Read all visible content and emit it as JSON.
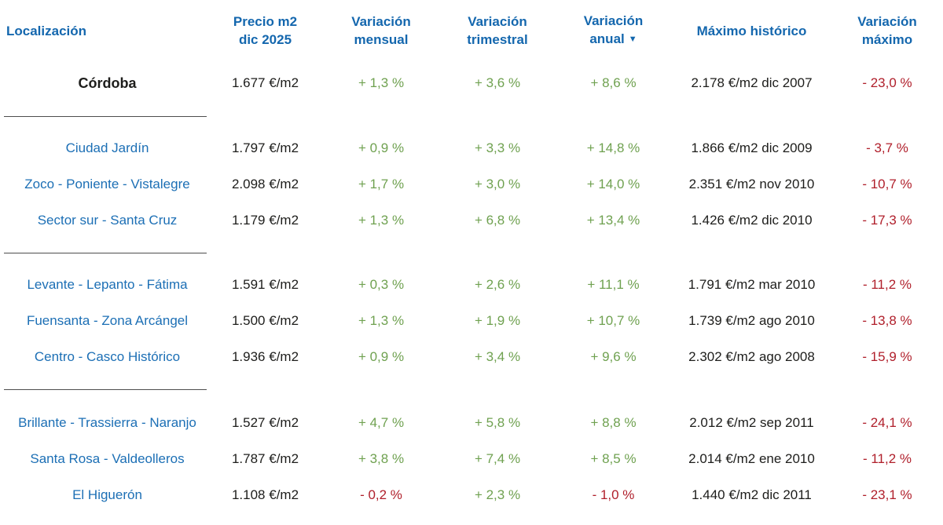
{
  "header": {
    "localizacion": "Localización",
    "precio": [
      "Precio m2",
      "dic 2025"
    ],
    "mensual": [
      "Variación",
      "mensual"
    ],
    "trimestral": [
      "Variación",
      "trimestral"
    ],
    "anual": [
      "Variación",
      "anual"
    ],
    "maximo_historico": "Máximo histórico",
    "variacion_maximo": [
      "Variación",
      "máximo"
    ],
    "sort_icon": "▼"
  },
  "summary": {
    "location": "Córdoba",
    "price": "1.677 €/m2",
    "monthly": "+ 1,3 %",
    "quarterly": "+ 3,6 %",
    "annual": "+ 8,6 %",
    "max": "2.178 €/m2 dic 2007",
    "var_max": "- 23,0 %"
  },
  "groups": [
    {
      "rows": [
        {
          "location": "Ciudad Jardín",
          "price": "1.797 €/m2",
          "monthly": "+ 0,9 %",
          "quarterly": "+ 3,3 %",
          "annual": "+ 14,8 %",
          "max": "1.866 €/m2 dic 2009",
          "var_max": "- 3,7 %"
        },
        {
          "location": "Zoco - Poniente - Vistalegre",
          "price": "2.098 €/m2",
          "monthly": "+ 1,7 %",
          "quarterly": "+ 3,0 %",
          "annual": "+ 14,0 %",
          "max": "2.351 €/m2 nov 2010",
          "var_max": "- 10,7 %"
        },
        {
          "location": "Sector sur - Santa Cruz",
          "price": "1.179 €/m2",
          "monthly": "+ 1,3 %",
          "quarterly": "+ 6,8 %",
          "annual": "+ 13,4 %",
          "max": "1.426 €/m2 dic 2010",
          "var_max": "- 17,3 %"
        }
      ]
    },
    {
      "rows": [
        {
          "location": "Levante - Lepanto - Fátima",
          "price": "1.591 €/m2",
          "monthly": "+ 0,3 %",
          "quarterly": "+ 2,6 %",
          "annual": "+ 11,1 %",
          "max": "1.791 €/m2 mar 2010",
          "var_max": "- 11,2 %"
        },
        {
          "location": "Fuensanta - Zona Arcángel",
          "price": "1.500 €/m2",
          "monthly": "+ 1,3 %",
          "quarterly": "+ 1,9 %",
          "annual": "+ 10,7 %",
          "max": "1.739 €/m2 ago 2010",
          "var_max": "- 13,8 %"
        },
        {
          "location": "Centro - Casco Histórico",
          "price": "1.936 €/m2",
          "monthly": "+ 0,9 %",
          "quarterly": "+ 3,4 %",
          "annual": "+ 9,6 %",
          "max": "2.302 €/m2 ago 2008",
          "var_max": "- 15,9 %"
        }
      ]
    },
    {
      "rows": [
        {
          "location": "Brillante - Trassierra - Naranjo",
          "price": "1.527 €/m2",
          "monthly": "+ 4,7 %",
          "quarterly": "+ 5,8 %",
          "annual": "+ 8,8 %",
          "max": "2.012 €/m2 sep 2011",
          "var_max": "- 24,1 %"
        },
        {
          "location": "Santa Rosa - Valdeolleros",
          "price": "1.787 €/m2",
          "monthly": "+ 3,8 %",
          "quarterly": "+ 7,4 %",
          "annual": "+ 8,5 %",
          "max": "2.014 €/m2 ene 2010",
          "var_max": "- 11,2 %"
        },
        {
          "location": "El Higuerón",
          "price": "1.108 €/m2",
          "monthly": "- 0,2 %",
          "quarterly": "+ 2,3 %",
          "annual": "- 1,0 %",
          "max": "1.440 €/m2 dic 2011",
          "var_max": "- 23,1 %"
        }
      ]
    }
  ],
  "colors": {
    "header_blue": "#1467ae",
    "link_blue": "#1c6fb5",
    "positive_green": "#6fa150",
    "negative_red": "#b01f2b",
    "text_dark": "#1d1d1b",
    "divider": "#4d4d4d"
  }
}
